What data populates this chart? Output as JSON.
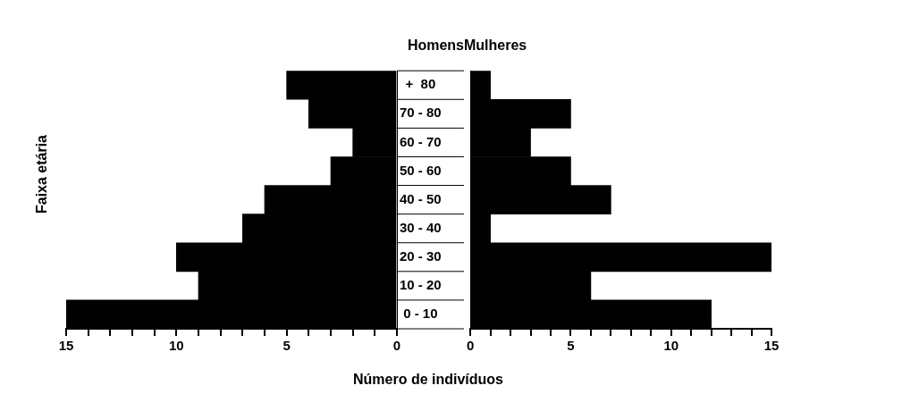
{
  "chart_data": [
    {
      "type": "bar",
      "orientation": "horizontal",
      "title": "Homens",
      "ylabel": "Faixa etária",
      "xlabel": "Número de indivíduos",
      "categories": [
        "+  80",
        "70 - 80",
        "60 - 70",
        "50 - 60",
        "40 - 50",
        "30 - 40",
        "20 - 30",
        "10 - 20",
        "0 - 10"
      ],
      "values": [
        5,
        4,
        2,
        3,
        6,
        7,
        10,
        9,
        15
      ],
      "color": "#000000",
      "xlim": [
        15,
        0
      ],
      "xticks": [
        15,
        {
          "value": 14,
          "label": null
        },
        {
          "value": 13,
          "label": null
        },
        {
          "value": 12,
          "label": null
        },
        {
          "value": 11,
          "label": null
        },
        10,
        {
          "value": 9,
          "label": null
        },
        {
          "value": 8,
          "label": null
        },
        {
          "value": 7,
          "label": null
        },
        {
          "value": 6,
          "label": null
        },
        5,
        {
          "value": 4,
          "label": null
        },
        {
          "value": 3,
          "label": null
        },
        {
          "value": 2,
          "label": null
        },
        {
          "value": 1,
          "label": null
        },
        0
      ],
      "grid": false
    },
    {
      "type": "bar",
      "orientation": "horizontal",
      "title": "Mulheres",
      "categories": [
        null,
        null,
        null,
        null,
        null,
        null,
        null,
        null,
        null
      ],
      "values": [
        1,
        5,
        3,
        5,
        7,
        1,
        15,
        6,
        12
      ],
      "color": "#000000",
      "xlim": [
        0,
        15
      ],
      "xticks": [
        0,
        {
          "value": 1,
          "label": null
        },
        {
          "value": 2,
          "label": null
        },
        {
          "value": 3,
          "label": null
        },
        {
          "value": 4,
          "label": null
        },
        5,
        {
          "value": 6,
          "label": null
        },
        {
          "value": 7,
          "label": null
        },
        {
          "value": 8,
          "label": null
        },
        {
          "value": 9,
          "label": null
        },
        10,
        {
          "value": 11,
          "label": null
        },
        {
          "value": 12,
          "label": null
        },
        {
          "value": 13,
          "label": null
        },
        {
          "value": 14,
          "label": null
        },
        15
      ],
      "tick_labels": "x",
      "grid": false
    }
  ]
}
